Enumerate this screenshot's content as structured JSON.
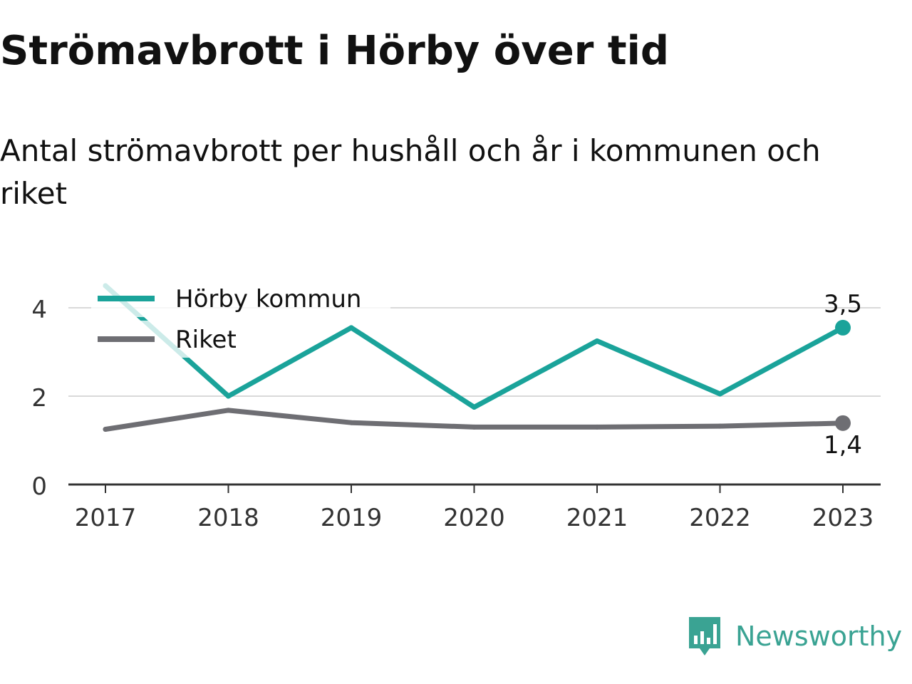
{
  "header": {
    "title": "Strömavbrott i Hörby över tid",
    "subtitle": "Antal strömavbrott per hushåll och år i kommunen och riket"
  },
  "chart_data": {
    "type": "line",
    "x": [
      "2017",
      "2018",
      "2019",
      "2020",
      "2021",
      "2022",
      "2023"
    ],
    "ylim": [
      0,
      4.8
    ],
    "yticks": [
      0,
      2,
      4
    ],
    "ytick_labels": [
      "0",
      "2",
      "4"
    ],
    "grid": true,
    "legend": "top-left",
    "series": [
      {
        "name": "Hörby kommun",
        "color": "#1aa39a",
        "values": [
          4.5,
          2.0,
          3.55,
          1.75,
          3.25,
          2.05,
          3.55
        ],
        "end_label": "3,5"
      },
      {
        "name": "Riket",
        "color": "#6e6e73",
        "values": [
          1.25,
          1.68,
          1.4,
          1.3,
          1.3,
          1.32,
          1.39
        ],
        "end_label": "1,4"
      }
    ]
  },
  "branding": {
    "name": "Newsworthy",
    "icon": "newsworthy-logo-icon",
    "color": "#3aa393"
  }
}
